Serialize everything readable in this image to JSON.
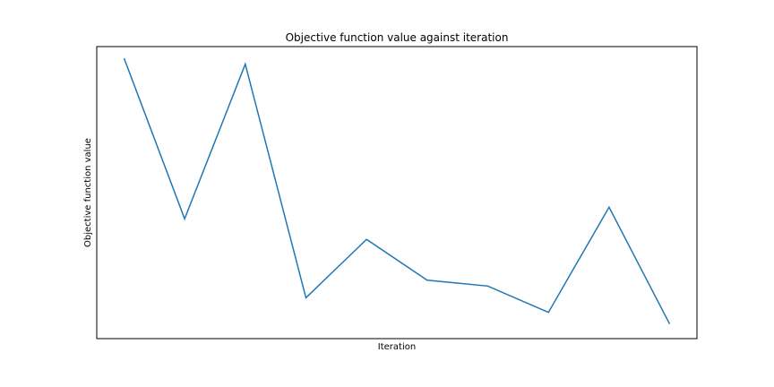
{
  "chart_data": {
    "type": "line",
    "title": "Objective function value against iteration",
    "xlabel": "Iteration",
    "ylabel": "Objective function value",
    "x": [
      1,
      2,
      3,
      4,
      5,
      6,
      7,
      8,
      9,
      10
    ],
    "series": [
      {
        "values": [
          0.96,
          0.41,
          0.94,
          0.14,
          0.34,
          0.2,
          0.18,
          0.09,
          0.45,
          0.05
        ],
        "color": "#1f77b4"
      }
    ],
    "xlim": [
      0.55,
      10.45
    ],
    "ylim": [
      0.0,
      1.0
    ],
    "x_ticks_visible": false,
    "y_ticks_visible": false,
    "grid": false,
    "legend": "none"
  }
}
